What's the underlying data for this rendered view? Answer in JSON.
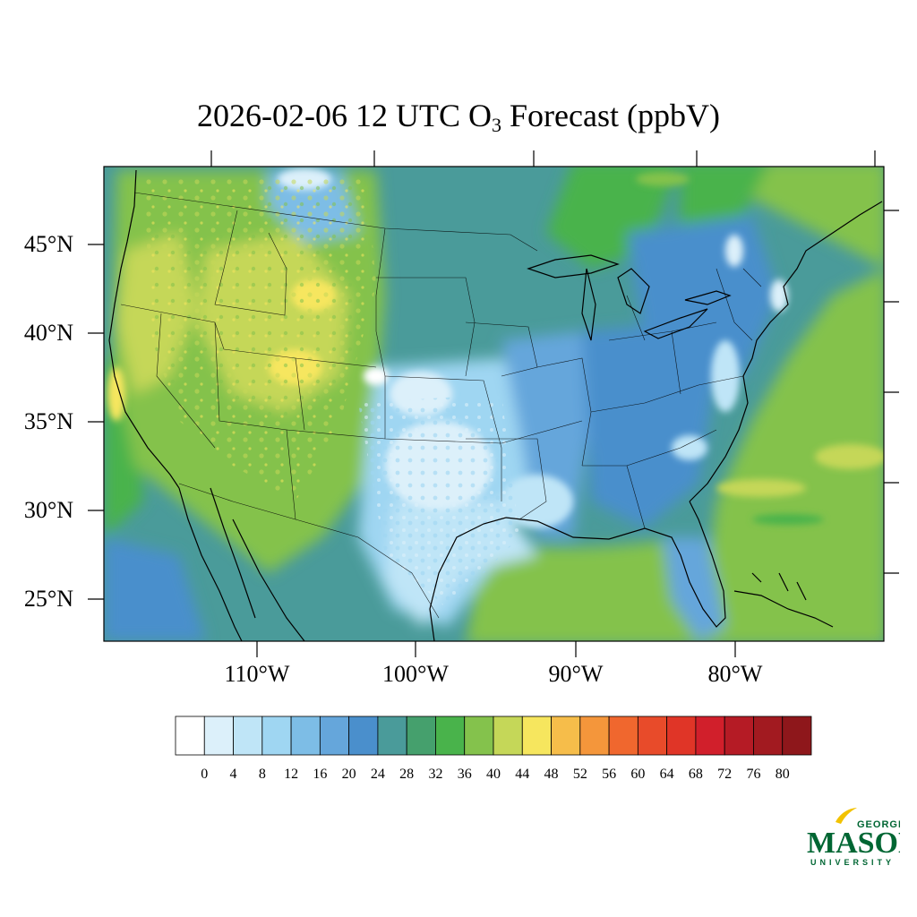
{
  "title": {
    "prefix": "2026-02-06 12 UTC O",
    "subscript": "3",
    "suffix": " Forecast (ppbV)"
  },
  "lat_labels": [
    "45°N",
    "40°N",
    "35°N",
    "30°N",
    "25°N"
  ],
  "lon_labels": [
    "110°W",
    "100°W",
    "90°W",
    "80°W"
  ],
  "colorbar": {
    "labels": [
      "0",
      "4",
      "8",
      "12",
      "16",
      "20",
      "24",
      "28",
      "32",
      "36",
      "40",
      "44",
      "48",
      "52",
      "56",
      "60",
      "64",
      "68",
      "72",
      "76",
      "80"
    ],
    "colors": [
      "#ffffff",
      "#dcf0fa",
      "#bfe5f7",
      "#9fd6f2",
      "#7dbde6",
      "#65a6db",
      "#4a8fcc",
      "#4a9b9a",
      "#45a06d",
      "#49b34b",
      "#84c24c",
      "#c5d758",
      "#f6e65e",
      "#f6bd4a",
      "#f4963b",
      "#f0672e",
      "#e84b2a",
      "#e03527",
      "#d11f2b",
      "#b51b25",
      "#a21a20",
      "#8e171b"
    ]
  },
  "logo": {
    "line1": "GEORGE",
    "line2": "MASON",
    "line3": "UNIVERSITY",
    "color": "#006633",
    "accent": "#f2c200"
  }
}
